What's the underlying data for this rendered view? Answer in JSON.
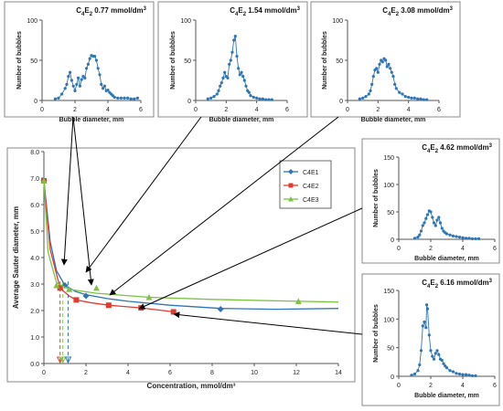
{
  "chart_data": [
    {
      "type": "scatter",
      "role": "main",
      "title": "",
      "xlabel": "Concentration, mmol/dm³",
      "ylabel": "Average Sauter diameter, mm",
      "xlim": [
        0,
        14
      ],
      "ylim": [
        0,
        8
      ],
      "xticks": [
        "0",
        "2",
        "4",
        "6",
        "8",
        "10",
        "12",
        "14"
      ],
      "yticks": [
        "0.0",
        "1.0",
        "2.0",
        "3.0",
        "4.0",
        "5.0",
        "6.0",
        "7.0",
        "8.0"
      ],
      "grid": false,
      "legend": "top-right",
      "series": [
        {
          "name": "C4E1",
          "color": "#2E75B6",
          "marker": "diamond",
          "points": [
            [
              0,
              6.9
            ],
            [
              1.0,
              2.95
            ],
            [
              2.0,
              2.55
            ],
            [
              8.4,
              2.05
            ]
          ],
          "curve": [
            [
              0,
              6.9
            ],
            [
              0.3,
              4.6
            ],
            [
              0.6,
              3.5
            ],
            [
              1.0,
              2.95
            ],
            [
              1.5,
              2.72
            ],
            [
              2.0,
              2.6
            ],
            [
              3,
              2.45
            ],
            [
              4,
              2.35
            ],
            [
              6,
              2.2
            ],
            [
              8.4,
              2.08
            ],
            [
              11,
              2.05
            ],
            [
              14,
              2.08
            ]
          ]
        },
        {
          "name": "C4E2",
          "color": "#E03C31",
          "marker": "square",
          "points": [
            [
              0,
              6.9
            ],
            [
              0.77,
              2.85
            ],
            [
              1.54,
              2.4
            ],
            [
              3.08,
              2.2
            ],
            [
              4.62,
              2.1
            ],
            [
              6.16,
              1.95
            ]
          ],
          "curve": [
            [
              0,
              6.9
            ],
            [
              0.3,
              4.3
            ],
            [
              0.77,
              2.85
            ],
            [
              1.2,
              2.55
            ],
            [
              1.54,
              2.4
            ],
            [
              2.2,
              2.3
            ],
            [
              3.08,
              2.2
            ],
            [
              4.62,
              2.1
            ],
            [
              6.16,
              1.95
            ]
          ]
        },
        {
          "name": "C4E3",
          "color": "#7DC242",
          "marker": "triangle",
          "points": [
            [
              0,
              6.9
            ],
            [
              0.6,
              2.95
            ],
            [
              1.2,
              2.8
            ],
            [
              2.5,
              2.85
            ],
            [
              5,
              2.5
            ],
            [
              12.1,
              2.35
            ]
          ],
          "curve": [
            [
              0,
              6.9
            ],
            [
              0.2,
              4.2
            ],
            [
              0.6,
              3.05
            ],
            [
              1.2,
              2.8
            ],
            [
              2.5,
              2.65
            ],
            [
              5,
              2.5
            ],
            [
              8,
              2.42
            ],
            [
              12.1,
              2.35
            ],
            [
              14,
              2.32
            ]
          ]
        }
      ],
      "cmc_markers": [
        {
          "x": 0.77,
          "color": "#E03C31"
        },
        {
          "x": 0.9,
          "color": "#7DC242"
        },
        {
          "x": 1.15,
          "color": "#2E75B6"
        }
      ]
    },
    {
      "type": "line",
      "role": "histogram",
      "title_prefix": "C",
      "sub1": "4",
      "mid": "E",
      "sub2": "2",
      "title_rest": " 0.77 mmol/dm",
      "title_sup": "3",
      "xlabel": "Bubble diameter, mm",
      "ylabel": "Number of bubbles",
      "xlim": [
        0,
        6
      ],
      "ylim": [
        0,
        100
      ],
      "xticks": [
        "0",
        "2",
        "4",
        "6"
      ],
      "yticks": [
        "0",
        "50",
        "100"
      ],
      "color": "#2E75B6",
      "x": [
        0.8,
        1.0,
        1.2,
        1.4,
        1.5,
        1.6,
        1.7,
        1.8,
        1.9,
        2.0,
        2.1,
        2.2,
        2.3,
        2.4,
        2.5,
        2.6,
        2.7,
        2.8,
        2.9,
        3.0,
        3.1,
        3.2,
        3.3,
        3.4,
        3.5,
        3.6,
        3.7,
        3.8,
        3.9,
        4.0,
        4.1,
        4.2,
        4.3,
        4.4,
        4.6,
        4.8,
        5.0,
        5.2,
        5.4,
        5.6,
        5.8
      ],
      "y": [
        2,
        3,
        8,
        15,
        20,
        30,
        35,
        25,
        18,
        12,
        20,
        28,
        18,
        26,
        30,
        28,
        40,
        45,
        52,
        56,
        55,
        55,
        50,
        40,
        32,
        20,
        15,
        18,
        12,
        13,
        10,
        8,
        6,
        4,
        3,
        3,
        3,
        3,
        2,
        2,
        3
      ]
    },
    {
      "type": "line",
      "role": "histogram",
      "title_prefix": "C",
      "sub1": "4",
      "mid": "E",
      "sub2": "2",
      "title_rest": " 1.54 mmol/dm",
      "title_sup": "3",
      "xlabel": "Bubble diameter, mm",
      "ylabel": "Number of bubbles",
      "xlim": [
        0,
        6
      ],
      "ylim": [
        0,
        100
      ],
      "xticks": [
        "0",
        "2",
        "4",
        "6"
      ],
      "yticks": [
        "0",
        "50",
        "100"
      ],
      "color": "#2E75B6",
      "x": [
        0.8,
        1.0,
        1.2,
        1.4,
        1.5,
        1.6,
        1.7,
        1.8,
        1.9,
        2.0,
        2.1,
        2.2,
        2.3,
        2.4,
        2.5,
        2.6,
        2.7,
        2.8,
        2.9,
        3.0,
        3.1,
        3.2,
        3.3,
        3.4,
        3.5,
        3.6,
        3.8,
        4.0,
        4.2,
        4.4,
        4.6,
        4.8,
        5.0
      ],
      "y": [
        2,
        3,
        5,
        8,
        12,
        18,
        22,
        28,
        35,
        30,
        28,
        45,
        50,
        60,
        75,
        80,
        55,
        40,
        32,
        35,
        30,
        25,
        18,
        12,
        10,
        6,
        4,
        3,
        2,
        2,
        1,
        1,
        1
      ]
    },
    {
      "type": "line",
      "role": "histogram",
      "title_prefix": "C",
      "sub1": "4",
      "mid": "E",
      "sub2": "2",
      "title_rest": " 3.08 mmol/dm",
      "title_sup": "3",
      "xlabel": "Bubble diameter, mm",
      "ylabel": "Number of bubbles",
      "xlim": [
        0,
        6
      ],
      "ylim": [
        0,
        100
      ],
      "xticks": [
        "0",
        "2",
        "4",
        "6"
      ],
      "yticks": [
        "0",
        "50",
        "100"
      ],
      "color": "#2E75B6",
      "x": [
        0.8,
        1.0,
        1.2,
        1.4,
        1.5,
        1.6,
        1.7,
        1.8,
        1.9,
        2.0,
        2.1,
        2.2,
        2.3,
        2.4,
        2.5,
        2.6,
        2.7,
        2.8,
        2.9,
        3.0,
        3.1,
        3.2,
        3.4,
        3.6,
        3.8,
        4.0,
        4.2,
        4.4,
        4.6,
        4.8,
        5.0,
        5.2
      ],
      "y": [
        2,
        3,
        5,
        8,
        12,
        20,
        30,
        38,
        40,
        35,
        45,
        50,
        48,
        52,
        50,
        42,
        45,
        40,
        35,
        30,
        20,
        15,
        10,
        8,
        5,
        4,
        3,
        3,
        2,
        2,
        1,
        1
      ]
    },
    {
      "type": "line",
      "role": "histogram",
      "title_prefix": "C",
      "sub1": "4",
      "mid": "E",
      "sub2": "2",
      "title_rest": " 4.62 mmol/dm",
      "title_sup": "3",
      "xlabel": "Bubble diameter, mm",
      "ylabel": "Number of bubbles",
      "xlim": [
        0,
        6
      ],
      "ylim": [
        0,
        150
      ],
      "xticks": [
        "0",
        "2",
        "4",
        "6"
      ],
      "yticks": [
        "0",
        "50",
        "100",
        "150"
      ],
      "color": "#2E75B6",
      "x": [
        1.0,
        1.2,
        1.3,
        1.4,
        1.5,
        1.6,
        1.7,
        1.8,
        1.9,
        2.0,
        2.1,
        2.2,
        2.3,
        2.4,
        2.5,
        2.6,
        2.7,
        2.8,
        2.9,
        3.0,
        3.2,
        3.4,
        3.6,
        3.8,
        4.0,
        4.2,
        4.4,
        4.6,
        4.8,
        5.0
      ],
      "y": [
        2,
        4,
        8,
        15,
        25,
        30,
        38,
        45,
        52,
        50,
        40,
        30,
        25,
        35,
        40,
        30,
        20,
        15,
        12,
        10,
        8,
        6,
        5,
        4,
        3,
        2,
        2,
        1,
        1,
        1
      ]
    },
    {
      "type": "line",
      "role": "histogram",
      "title_prefix": "C",
      "sub1": "4",
      "mid": "E",
      "sub2": "2",
      "title_rest": " 6.16 mmol/dm",
      "title_sup": "3",
      "xlabel": "Bubble diameter, mm",
      "ylabel": "Number of bubbles",
      "xlim": [
        0,
        6
      ],
      "ylim": [
        0,
        150
      ],
      "xticks": [
        "0",
        "2",
        "4",
        "6"
      ],
      "yticks": [
        "0",
        "50",
        "100",
        "150"
      ],
      "color": "#2E75B6",
      "x": [
        0.8,
        1.0,
        1.2,
        1.3,
        1.4,
        1.5,
        1.6,
        1.7,
        1.75,
        1.8,
        1.9,
        2.0,
        2.1,
        2.2,
        2.3,
        2.4,
        2.5,
        2.6,
        2.7,
        2.8,
        2.9,
        3.0,
        3.2,
        3.4,
        3.6,
        3.8,
        4.0,
        4.2,
        4.4,
        4.6,
        4.8
      ],
      "y": [
        2,
        4,
        10,
        20,
        45,
        88,
        95,
        85,
        125,
        118,
        72,
        45,
        35,
        30,
        40,
        45,
        38,
        30,
        28,
        22,
        18,
        15,
        10,
        8,
        5,
        4,
        3,
        3,
        2,
        1,
        1
      ]
    }
  ]
}
